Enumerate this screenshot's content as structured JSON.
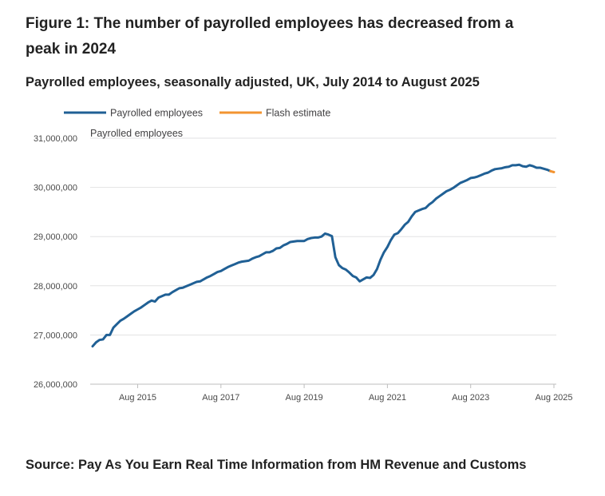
{
  "title": "Figure 1: The number of payrolled employees has decreased from a peak in 2024",
  "subtitle": "Payrolled employees, seasonally adjusted, UK, July 2014 to August 2025",
  "source": "Source: Pay As You Earn Real Time Information from HM Revenue and Customs",
  "chart_data": {
    "type": "line",
    "ylabel": "Payrolled employees",
    "ylim": [
      26000000,
      31000000
    ],
    "xlim": [
      "2014-07",
      "2025-08"
    ],
    "y_ticks": [
      {
        "value": 26000000,
        "label": "26,000,000"
      },
      {
        "value": 27000000,
        "label": "27,000,000"
      },
      {
        "value": 28000000,
        "label": "28,000,000"
      },
      {
        "value": 29000000,
        "label": "29,000,000"
      },
      {
        "value": 30000000,
        "label": "30,000,000"
      },
      {
        "value": 31000000,
        "label": "31,000,000"
      }
    ],
    "x_ticks": [
      {
        "date": "2015-08",
        "label": "Aug 2015"
      },
      {
        "date": "2017-08",
        "label": "Aug 2017"
      },
      {
        "date": "2019-08",
        "label": "Aug 2019"
      },
      {
        "date": "2021-08",
        "label": "Aug 2021"
      },
      {
        "date": "2023-08",
        "label": "Aug 2023"
      },
      {
        "date": "2025-08",
        "label": "Aug 2025"
      }
    ],
    "grid": "horizontal",
    "legend_position": "top-left",
    "series": [
      {
        "name": "Payrolled employees",
        "color": "#206095",
        "points": [
          [
            "2014-07",
            26770000
          ],
          [
            "2014-08",
            26850000
          ],
          [
            "2014-09",
            26900000
          ],
          [
            "2014-10",
            26910000
          ],
          [
            "2014-11",
            27000000
          ],
          [
            "2014-12",
            27000000
          ],
          [
            "2015-01",
            27150000
          ],
          [
            "2015-02",
            27220000
          ],
          [
            "2015-03",
            27290000
          ],
          [
            "2015-04",
            27330000
          ],
          [
            "2015-05",
            27380000
          ],
          [
            "2015-06",
            27430000
          ],
          [
            "2015-07",
            27480000
          ],
          [
            "2015-08",
            27520000
          ],
          [
            "2015-09",
            27560000
          ],
          [
            "2015-10",
            27610000
          ],
          [
            "2015-11",
            27660000
          ],
          [
            "2015-12",
            27700000
          ],
          [
            "2016-01",
            27680000
          ],
          [
            "2016-02",
            27760000
          ],
          [
            "2016-03",
            27790000
          ],
          [
            "2016-04",
            27820000
          ],
          [
            "2016-05",
            27820000
          ],
          [
            "2016-06",
            27870000
          ],
          [
            "2016-07",
            27910000
          ],
          [
            "2016-08",
            27950000
          ],
          [
            "2016-09",
            27960000
          ],
          [
            "2016-10",
            27990000
          ],
          [
            "2016-11",
            28020000
          ],
          [
            "2016-12",
            28050000
          ],
          [
            "2017-01",
            28080000
          ],
          [
            "2017-02",
            28090000
          ],
          [
            "2017-03",
            28130000
          ],
          [
            "2017-04",
            28170000
          ],
          [
            "2017-05",
            28200000
          ],
          [
            "2017-06",
            28240000
          ],
          [
            "2017-07",
            28280000
          ],
          [
            "2017-08",
            28300000
          ],
          [
            "2017-09",
            28340000
          ],
          [
            "2017-10",
            28380000
          ],
          [
            "2017-11",
            28410000
          ],
          [
            "2017-12",
            28440000
          ],
          [
            "2018-01",
            28470000
          ],
          [
            "2018-02",
            28490000
          ],
          [
            "2018-03",
            28500000
          ],
          [
            "2018-04",
            28510000
          ],
          [
            "2018-05",
            28550000
          ],
          [
            "2018-06",
            28580000
          ],
          [
            "2018-07",
            28600000
          ],
          [
            "2018-08",
            28640000
          ],
          [
            "2018-09",
            28680000
          ],
          [
            "2018-10",
            28680000
          ],
          [
            "2018-11",
            28710000
          ],
          [
            "2018-12",
            28760000
          ],
          [
            "2019-01",
            28770000
          ],
          [
            "2019-02",
            28820000
          ],
          [
            "2019-03",
            28850000
          ],
          [
            "2019-04",
            28890000
          ],
          [
            "2019-05",
            28900000
          ],
          [
            "2019-06",
            28910000
          ],
          [
            "2019-07",
            28910000
          ],
          [
            "2019-08",
            28910000
          ],
          [
            "2019-09",
            28950000
          ],
          [
            "2019-10",
            28970000
          ],
          [
            "2019-11",
            28980000
          ],
          [
            "2019-12",
            28980000
          ],
          [
            "2020-01",
            29000000
          ],
          [
            "2020-02",
            29060000
          ],
          [
            "2020-03",
            29040000
          ],
          [
            "2020-04",
            29010000
          ],
          [
            "2020-05",
            28580000
          ],
          [
            "2020-06",
            28420000
          ],
          [
            "2020-07",
            28360000
          ],
          [
            "2020-08",
            28330000
          ],
          [
            "2020-09",
            28270000
          ],
          [
            "2020-10",
            28200000
          ],
          [
            "2020-11",
            28170000
          ],
          [
            "2020-12",
            28090000
          ],
          [
            "2021-01",
            28130000
          ],
          [
            "2021-02",
            28170000
          ],
          [
            "2021-03",
            28160000
          ],
          [
            "2021-04",
            28220000
          ],
          [
            "2021-05",
            28340000
          ],
          [
            "2021-06",
            28530000
          ],
          [
            "2021-07",
            28680000
          ],
          [
            "2021-08",
            28790000
          ],
          [
            "2021-09",
            28930000
          ],
          [
            "2021-10",
            29040000
          ],
          [
            "2021-11",
            29070000
          ],
          [
            "2021-12",
            29150000
          ],
          [
            "2022-01",
            29240000
          ],
          [
            "2022-02",
            29300000
          ],
          [
            "2022-03",
            29410000
          ],
          [
            "2022-04",
            29500000
          ],
          [
            "2022-05",
            29530000
          ],
          [
            "2022-06",
            29560000
          ],
          [
            "2022-07",
            29580000
          ],
          [
            "2022-08",
            29650000
          ],
          [
            "2022-09",
            29700000
          ],
          [
            "2022-10",
            29770000
          ],
          [
            "2022-11",
            29820000
          ],
          [
            "2022-12",
            29870000
          ],
          [
            "2023-01",
            29920000
          ],
          [
            "2023-02",
            29950000
          ],
          [
            "2023-03",
            29990000
          ],
          [
            "2023-04",
            30040000
          ],
          [
            "2023-05",
            30090000
          ],
          [
            "2023-06",
            30120000
          ],
          [
            "2023-07",
            30150000
          ],
          [
            "2023-08",
            30190000
          ],
          [
            "2023-09",
            30200000
          ],
          [
            "2023-10",
            30220000
          ],
          [
            "2023-11",
            30250000
          ],
          [
            "2023-12",
            30280000
          ],
          [
            "2024-01",
            30300000
          ],
          [
            "2024-02",
            30340000
          ],
          [
            "2024-03",
            30370000
          ],
          [
            "2024-04",
            30380000
          ],
          [
            "2024-05",
            30390000
          ],
          [
            "2024-06",
            30410000
          ],
          [
            "2024-07",
            30420000
          ],
          [
            "2024-08",
            30450000
          ],
          [
            "2024-09",
            30450000
          ],
          [
            "2024-10",
            30460000
          ],
          [
            "2024-11",
            30430000
          ],
          [
            "2024-12",
            30420000
          ],
          [
            "2025-01",
            30450000
          ],
          [
            "2025-02",
            30430000
          ],
          [
            "2025-03",
            30400000
          ],
          [
            "2025-04",
            30400000
          ],
          [
            "2025-05",
            30380000
          ],
          [
            "2025-06",
            30360000
          ],
          [
            "2025-07",
            30330000
          ]
        ]
      },
      {
        "name": "Flash estimate",
        "color": "#f39431",
        "points": [
          [
            "2025-07",
            30330000
          ],
          [
            "2025-08",
            30310000
          ]
        ]
      }
    ]
  }
}
